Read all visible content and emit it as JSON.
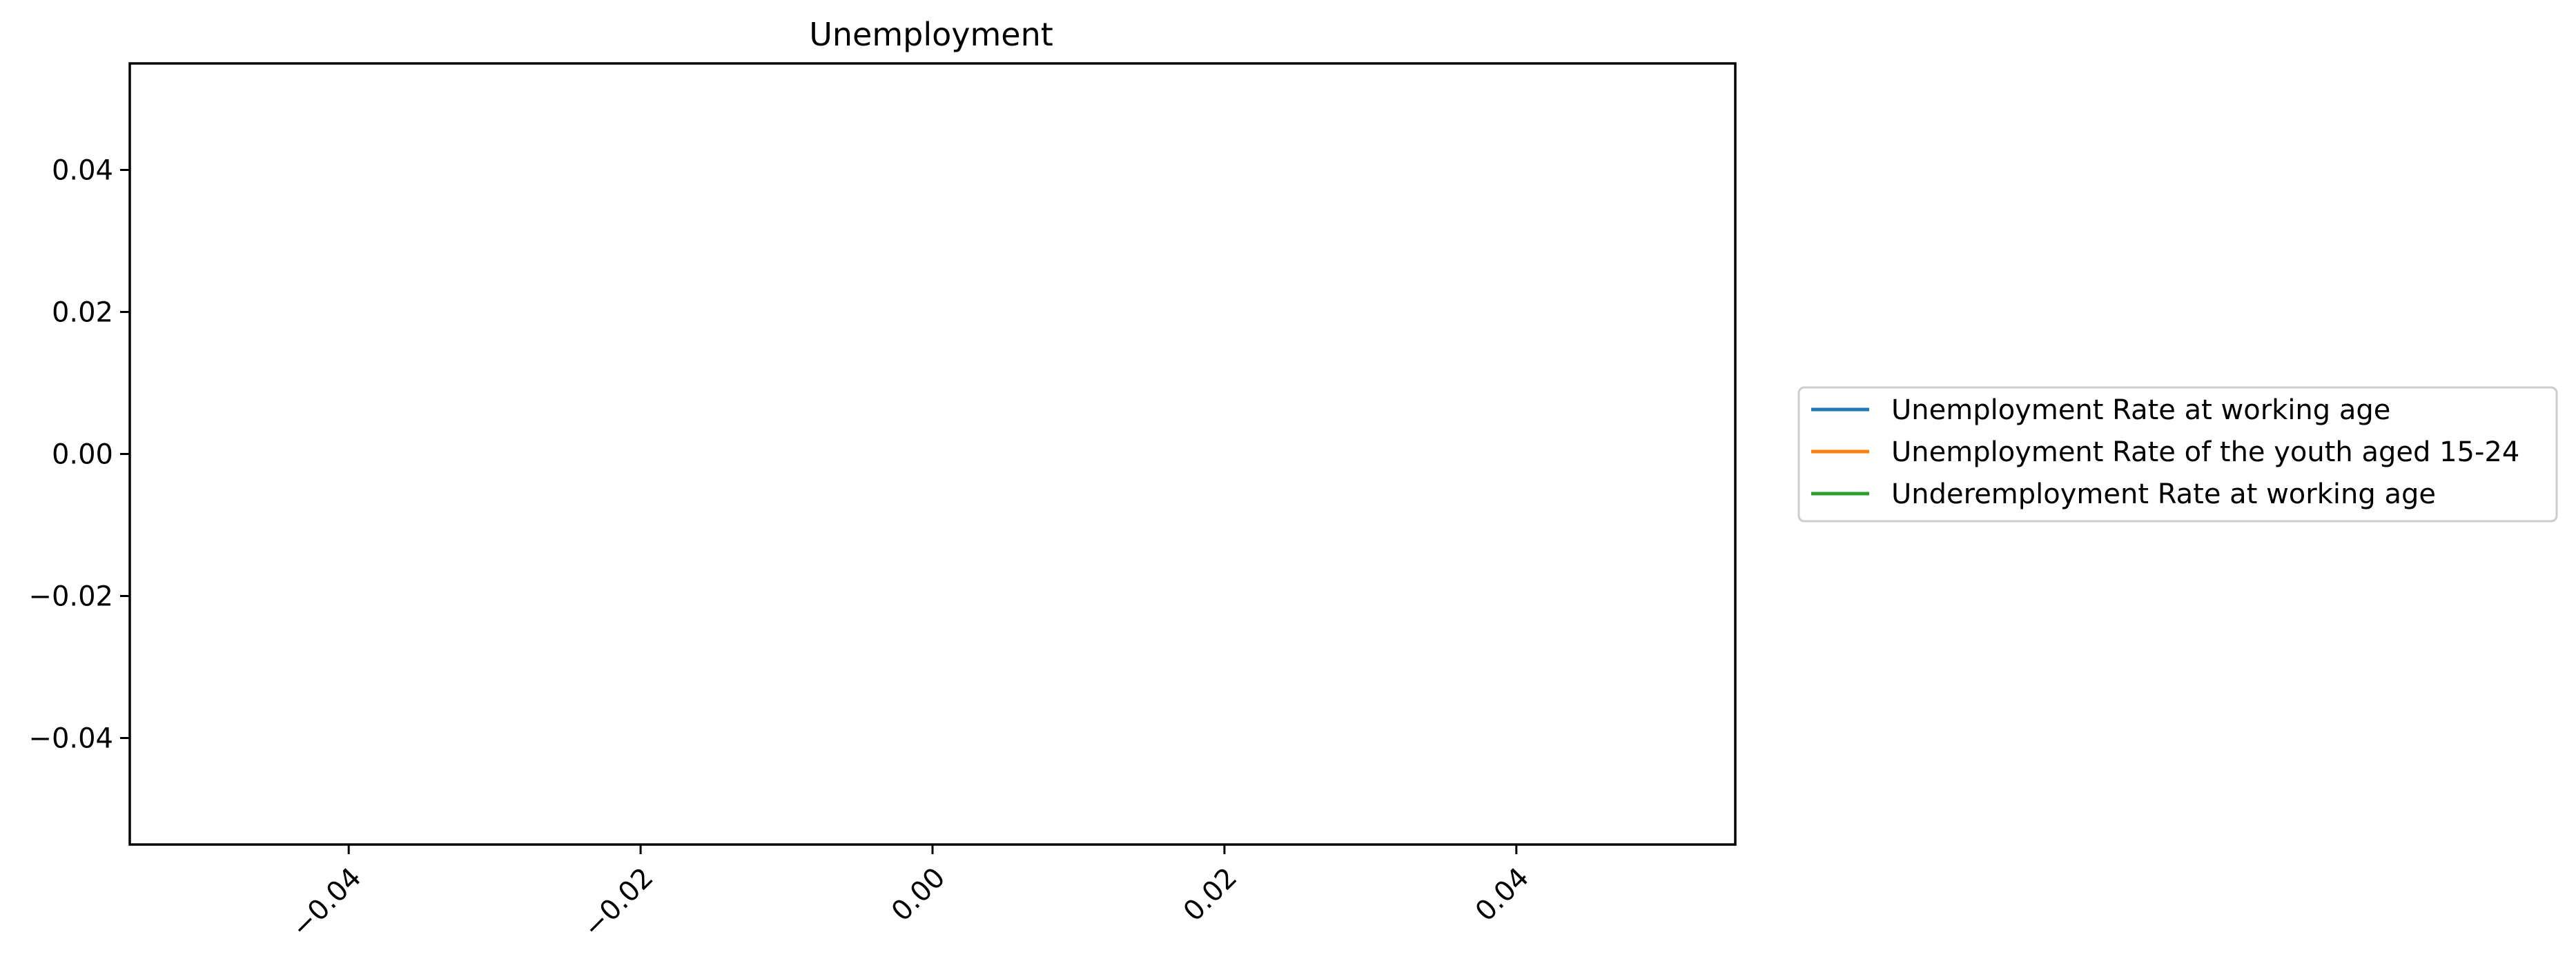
{
  "chart_data": {
    "type": "line",
    "title": "Unemployment",
    "xlabel": "",
    "ylabel": "",
    "xlim": [
      -0.055,
      0.055
    ],
    "ylim": [
      -0.055,
      0.055
    ],
    "x_ticks": [
      -0.04,
      -0.02,
      0.0,
      0.02,
      0.04
    ],
    "x_tick_labels": [
      "−0.04",
      "−0.02",
      "0.00",
      "0.02",
      "0.04"
    ],
    "y_ticks": [
      0.04,
      0.02,
      0.0,
      -0.02,
      -0.04
    ],
    "y_tick_labels": [
      "0.04",
      "0.02",
      "0.00",
      "−0.02",
      "−0.04"
    ],
    "grid": false,
    "legend_position": "center-right (outside plot)",
    "series": [
      {
        "name": "Unemployment Rate at working age",
        "color": "#1f77b4",
        "x": [],
        "y": []
      },
      {
        "name": "Unemployment Rate of the youth aged 15-24",
        "color": "#ff7f0e",
        "x": [],
        "y": []
      },
      {
        "name": "Underemployment Rate at working age",
        "color": "#2ca02c",
        "x": [],
        "y": []
      }
    ]
  }
}
